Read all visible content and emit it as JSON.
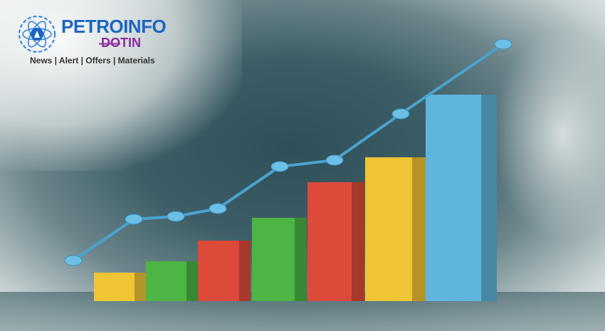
{
  "logo": {
    "brand": "PETROINFO",
    "suffix": "DOTIN",
    "tagline": "News | Alert | Offers | Materials"
  },
  "colors": {
    "yellow": "#f0c535",
    "green": "#4cb544",
    "red": "#dd4a3a",
    "blue": "#5fb5dc",
    "line": "#4aa3d0",
    "brand_blue": "#1a66c2",
    "brand_purple": "#8a2b9a"
  }
}
